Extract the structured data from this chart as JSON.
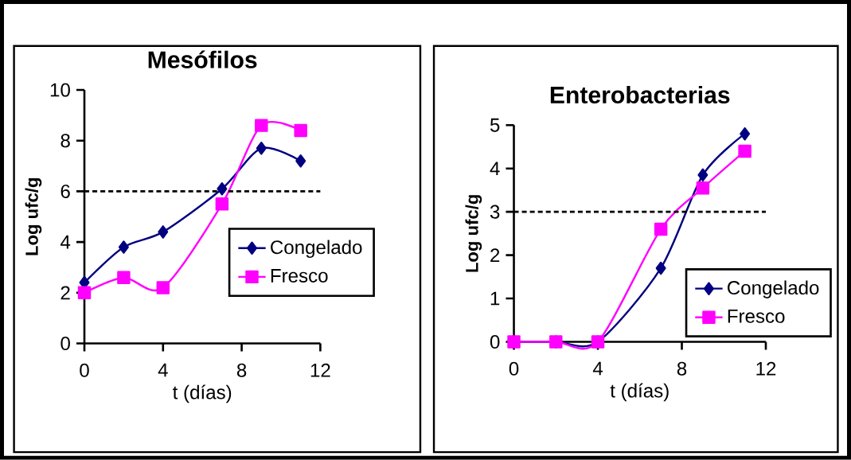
{
  "chart_data": [
    {
      "type": "line",
      "title": "Mesófilos",
      "xlabel": "t (días)",
      "ylabel": "Log ufc/g",
      "x": [
        0,
        2,
        4,
        7,
        9,
        11
      ],
      "xlim": [
        0,
        12
      ],
      "xticks": [
        0,
        4,
        8,
        12
      ],
      "ylim": [
        0,
        10
      ],
      "yticks": [
        0,
        2,
        4,
        6,
        8,
        10
      ],
      "series": [
        {
          "name": "Congelado",
          "color": "#000080",
          "marker": "diamond",
          "values": [
            2.4,
            3.8,
            4.4,
            6.1,
            7.7,
            7.2
          ]
        },
        {
          "name": "Fresco",
          "color": "#ff00ff",
          "marker": "square",
          "values": [
            2.0,
            2.6,
            2.2,
            5.5,
            8.6,
            8.4
          ]
        }
      ],
      "ref_lines": [
        {
          "axis": "y",
          "value": 6,
          "color": "#000000",
          "line_style": "dashed"
        }
      ],
      "legend": "right",
      "grid": false
    },
    {
      "type": "line",
      "title": "Enterobacterias",
      "xlabel": "t (días)",
      "ylabel": "Log ufc/g",
      "x": [
        0,
        2,
        4,
        7,
        9,
        11
      ],
      "xlim": [
        0,
        12
      ],
      "xticks": [
        0,
        4,
        8,
        12
      ],
      "ylim": [
        0,
        5
      ],
      "yticks": [
        0,
        1,
        2,
        3,
        4,
        5
      ],
      "series": [
        {
          "name": "Congelado",
          "color": "#000080",
          "marker": "diamond",
          "values": [
            0,
            0,
            0,
            1.7,
            3.85,
            4.8
          ]
        },
        {
          "name": "Fresco",
          "color": "#ff00ff",
          "marker": "square",
          "values": [
            0,
            0,
            0,
            2.6,
            3.55,
            4.4
          ]
        }
      ],
      "ref_lines": [
        {
          "axis": "y",
          "value": 3,
          "color": "#000000",
          "line_style": "dashed"
        }
      ],
      "legend": "bottom right",
      "grid": false
    }
  ]
}
